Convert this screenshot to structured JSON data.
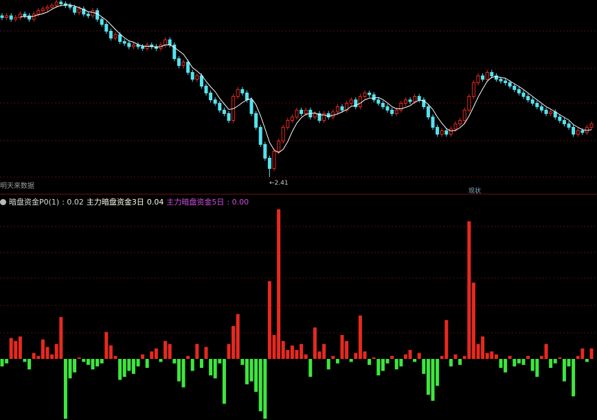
{
  "colors": {
    "up": "#e8291f",
    "down": "#54e3ef",
    "hist_pos": "#e8291f",
    "hist_neg": "#3ee63e",
    "ma": "#ffffff",
    "grid": "#5a1010",
    "legend_ma5": "#d050e0"
  },
  "top_pane": {
    "note_left": "明天来数据",
    "low_label": "←2.41",
    "marker_label": "现状"
  },
  "legend": {
    "item1_label": "暗盘资金P0(1)",
    "item1_value": ": 0.02",
    "item2_label": "主力暗盘资金3日",
    "item2_value": "0.04",
    "item3_label": "主力暗盘资金5日",
    "item3_value": ": 0.00"
  },
  "chart_data": [
    {
      "type": "candlestick",
      "ma_period": 5,
      "low_label_value": 2.41,
      "close": [
        3.34,
        3.35,
        3.33,
        3.34,
        3.36,
        3.35,
        3.33,
        3.36,
        3.38,
        3.39,
        3.4,
        3.41,
        3.43,
        3.42,
        3.41,
        3.4,
        3.37,
        3.39,
        3.36,
        3.35,
        3.38,
        3.33,
        3.3,
        3.26,
        3.22,
        3.24,
        3.2,
        3.19,
        3.17,
        3.18,
        3.17,
        3.16,
        3.18,
        3.17,
        3.16,
        3.18,
        3.21,
        3.18,
        3.1,
        3.06,
        3.08,
        3.02,
        2.98,
        3.0,
        2.94,
        2.9,
        2.86,
        2.84,
        2.8,
        2.78,
        2.74,
        2.88,
        2.92,
        2.9,
        2.86,
        2.78,
        2.7,
        2.6,
        2.52,
        2.46,
        2.56,
        2.62,
        2.7,
        2.74,
        2.76,
        2.8,
        2.78,
        2.8,
        2.76,
        2.78,
        2.74,
        2.78,
        2.76,
        2.79,
        2.82,
        2.8,
        2.84,
        2.86,
        2.82,
        2.88,
        2.9,
        2.89,
        2.86,
        2.84,
        2.82,
        2.8,
        2.78,
        2.8,
        2.84,
        2.86,
        2.85,
        2.88,
        2.86,
        2.82,
        2.76,
        2.7,
        2.66,
        2.68,
        2.66,
        2.69,
        2.72,
        2.74,
        2.8,
        2.88,
        2.96,
        3.0,
        2.98,
        3.02,
        3.0,
        2.98,
        2.97,
        2.96,
        2.94,
        2.92,
        2.9,
        2.88,
        2.86,
        2.84,
        2.82,
        2.8,
        2.78,
        2.79,
        2.76,
        2.74,
        2.72,
        2.7,
        2.66,
        2.68,
        2.67,
        2.7,
        2.72
      ]
    },
    {
      "type": "bar",
      "baseline": 0,
      "values": [
        -0.05,
        -0.03,
        0.14,
        0.12,
        0.15,
        -0.02,
        -0.07,
        0.04,
        0.02,
        0.13,
        0.08,
        0.03,
        0.1,
        0.28,
        -0.4,
        -0.13,
        -0.09,
        0.01,
        -0.02,
        -0.04,
        -0.07,
        -0.05,
        -0.03,
        0.18,
        0.09,
        0.02,
        -0.14,
        -0.12,
        -0.08,
        -0.1,
        -0.05,
        0.03,
        -0.06,
        0.05,
        0.07,
        -0.02,
        0.12,
        0.1,
        -0.03,
        -0.15,
        -0.19,
        0.02,
        -0.08,
        0.1,
        -0.06,
        0.08,
        -0.11,
        -0.13,
        -0.03,
        -0.3,
        0.1,
        0.22,
        0.3,
        -0.04,
        -0.17,
        -0.15,
        -0.22,
        -0.35,
        -0.4,
        0.52,
        0.16,
        1.0,
        0.12,
        0.06,
        0.09,
        0.06,
        0.1,
        0.03,
        -0.12,
        0.21,
        0.05,
        0.1,
        -0.07,
        0.02,
        -0.03,
        0.16,
        0.12,
        -0.02,
        0.04,
        0.29,
        0.05,
        -0.04,
        0.01,
        -0.11,
        -0.08,
        -0.03,
        0.02,
        -0.07,
        -0.05,
        0.03,
        0.06,
        -0.02,
        0.04,
        -0.1,
        -0.24,
        -0.28,
        -0.18,
        0.02,
        0.26,
        -0.05,
        0.03,
        -0.04,
        0.02,
        0.92,
        0.51,
        0.1,
        0.15,
        0.04,
        0.05,
        0.03,
        -0.06,
        -0.09,
        0.02,
        -0.05,
        -0.03,
        -0.04,
        0.02,
        -0.08,
        -0.12,
        0.02,
        0.1,
        -0.06,
        -0.03,
        0.01,
        -0.15,
        -0.05,
        -0.25,
        0.02,
        0.07,
        -0.02,
        0.07
      ]
    }
  ]
}
